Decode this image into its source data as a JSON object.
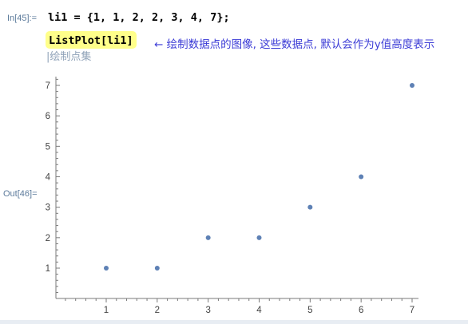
{
  "cells": {
    "input": {
      "label": "In[45]:=",
      "line1": "li1 = {1, 1, 2, 2, 3, 4, 7};",
      "line2": "ListPlot[li1]",
      "annotation": "← 绘制数据点的图像, 这些数据点, 默认会作为y值高度表示",
      "hint": "|绘制点集"
    },
    "output": {
      "label": "Out[46]="
    }
  },
  "colors": {
    "point": "#5e81b5",
    "annotation": "#3b3bd6",
    "highlight": "#ffff8a",
    "label": "#5b7a9b"
  },
  "chart_data": {
    "type": "scatter",
    "x": [
      1,
      2,
      3,
      4,
      5,
      6,
      7
    ],
    "y": [
      1,
      1,
      2,
      2,
      3,
      4,
      7
    ],
    "xticks": [
      "1",
      "2",
      "3",
      "4",
      "5",
      "6",
      "7"
    ],
    "yticks": [
      "1",
      "2",
      "3",
      "4",
      "5",
      "6",
      "7"
    ],
    "xlim": [
      0,
      7.1
    ],
    "ylim": [
      0,
      7.3
    ],
    "title": "",
    "xlabel": "",
    "ylabel": "",
    "grid": false
  }
}
